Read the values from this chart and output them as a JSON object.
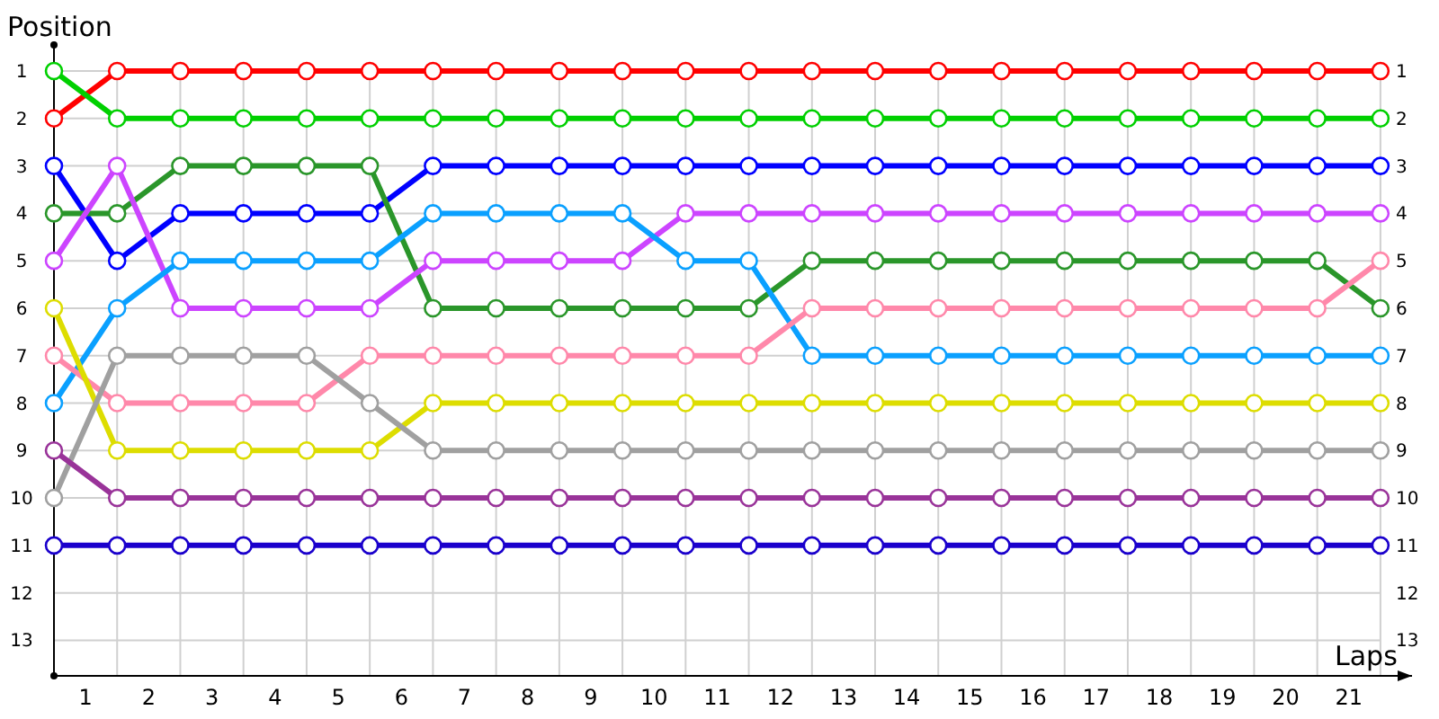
{
  "chart_data": {
    "type": "line",
    "xlabel": "Laps",
    "ylabel": "Position",
    "x": [
      0,
      1,
      2,
      3,
      4,
      5,
      6,
      7,
      8,
      9,
      10,
      11,
      12,
      13,
      14,
      15,
      16,
      17,
      18,
      19,
      20,
      21
    ],
    "xlim": [
      0,
      21.5
    ],
    "xticks": [
      {
        "value": 0.5,
        "label": "1"
      },
      {
        "value": 1,
        "label": null
      },
      {
        "value": 1.5,
        "label": "2"
      },
      {
        "value": 2,
        "label": null
      },
      {
        "value": 2.5,
        "label": "3"
      },
      {
        "value": 3,
        "label": null
      },
      {
        "value": 3.5,
        "label": "4"
      },
      {
        "value": 4,
        "label": null
      },
      {
        "value": 4.5,
        "label": "5"
      },
      {
        "value": 5,
        "label": null
      },
      {
        "value": 5.5,
        "label": "6"
      },
      {
        "value": 6,
        "label": null
      },
      {
        "value": 6.5,
        "label": "7"
      },
      {
        "value": 7,
        "label": null
      },
      {
        "value": 7.5,
        "label": "8"
      },
      {
        "value": 8,
        "label": null
      },
      {
        "value": 8.5,
        "label": "9"
      },
      {
        "value": 9,
        "label": null
      },
      {
        "value": 9.5,
        "label": "10"
      },
      {
        "value": 10,
        "label": null
      },
      {
        "value": 10.5,
        "label": "11"
      },
      {
        "value": 11,
        "label": null
      },
      {
        "value": 11.5,
        "label": "12"
      },
      {
        "value": 12,
        "label": null
      },
      {
        "value": 12.5,
        "label": "13"
      },
      {
        "value": 13,
        "label": null
      },
      {
        "value": 13.5,
        "label": "14"
      },
      {
        "value": 14,
        "label": null
      },
      {
        "value": 14.5,
        "label": "15"
      },
      {
        "value": 15,
        "label": null
      },
      {
        "value": 15.5,
        "label": "16"
      },
      {
        "value": 16,
        "label": null
      },
      {
        "value": 16.5,
        "label": "17"
      },
      {
        "value": 17,
        "label": null
      },
      {
        "value": 17.5,
        "label": "18"
      },
      {
        "value": 18,
        "label": null
      },
      {
        "value": 18.5,
        "label": "19"
      },
      {
        "value": 19,
        "label": null
      },
      {
        "value": 19.5,
        "label": "20"
      },
      {
        "value": 20,
        "label": null
      },
      {
        "value": 20.5,
        "label": "21"
      },
      {
        "value": 21,
        "label": null
      }
    ],
    "ylim": [
      13.75,
      0.45
    ],
    "yticks": [
      1,
      2,
      3,
      4,
      5,
      6,
      7,
      8,
      9,
      10,
      11,
      12,
      13
    ],
    "y2lim": [
      13.75,
      0.45
    ],
    "y2ticks": [
      1,
      2,
      3,
      4,
      5,
      6,
      7,
      8,
      9,
      10,
      11,
      12,
      13
    ],
    "grid": true,
    "marker": "circle",
    "line_style": "solid",
    "series": [
      {
        "color": "#ff0000",
        "values": [
          2,
          1,
          1,
          1,
          1,
          1,
          1,
          1,
          1,
          1,
          1,
          1,
          1,
          1,
          1,
          1,
          1,
          1,
          1,
          1,
          1,
          1
        ]
      },
      {
        "color": "#00d000",
        "values": [
          1,
          2,
          2,
          2,
          2,
          2,
          2,
          2,
          2,
          2,
          2,
          2,
          2,
          2,
          2,
          2,
          2,
          2,
          2,
          2,
          2,
          2
        ]
      },
      {
        "color": "#0000ff",
        "values": [
          3,
          5,
          4,
          4,
          4,
          4,
          3,
          3,
          3,
          3,
          3,
          3,
          3,
          3,
          3,
          3,
          3,
          3,
          3,
          3,
          3,
          3
        ]
      },
      {
        "color": "#2a962a",
        "values": [
          4,
          4,
          3,
          3,
          3,
          3,
          6,
          6,
          6,
          6,
          6,
          6,
          5,
          5,
          5,
          5,
          5,
          5,
          5,
          5,
          5,
          6
        ]
      },
      {
        "color": "#cc44ff",
        "values": [
          5,
          3,
          6,
          6,
          6,
          6,
          5,
          5,
          5,
          5,
          4,
          4,
          4,
          4,
          4,
          4,
          4,
          4,
          4,
          4,
          4,
          4
        ]
      },
      {
        "color": "#0aa0ff",
        "values": [
          8,
          6,
          5,
          5,
          5,
          5,
          4,
          4,
          4,
          4,
          5,
          5,
          7,
          7,
          7,
          7,
          7,
          7,
          7,
          7,
          7,
          7
        ]
      },
      {
        "color": "#ff88aa",
        "values": [
          7,
          8,
          8,
          8,
          8,
          7,
          7,
          7,
          7,
          7,
          7,
          7,
          6,
          6,
          6,
          6,
          6,
          6,
          6,
          6,
          6,
          5
        ]
      },
      {
        "color": "#dddd00",
        "values": [
          6,
          9,
          9,
          9,
          9,
          9,
          8,
          8,
          8,
          8,
          8,
          8,
          8,
          8,
          8,
          8,
          8,
          8,
          8,
          8,
          8,
          8
        ]
      },
      {
        "color": "#a0a0a0",
        "values": [
          10,
          7,
          7,
          7,
          7,
          8,
          9,
          9,
          9,
          9,
          9,
          9,
          9,
          9,
          9,
          9,
          9,
          9,
          9,
          9,
          9,
          9
        ]
      },
      {
        "color": "#993399",
        "values": [
          9,
          10,
          10,
          10,
          10,
          10,
          10,
          10,
          10,
          10,
          10,
          10,
          10,
          10,
          10,
          10,
          10,
          10,
          10,
          10,
          10,
          10
        ]
      },
      {
        "color": "#1a00cc",
        "values": [
          11,
          11,
          11,
          11,
          11,
          11,
          11,
          11,
          11,
          11,
          11,
          11,
          11,
          11,
          11,
          11,
          11,
          11,
          11,
          11,
          11,
          11
        ]
      }
    ]
  }
}
